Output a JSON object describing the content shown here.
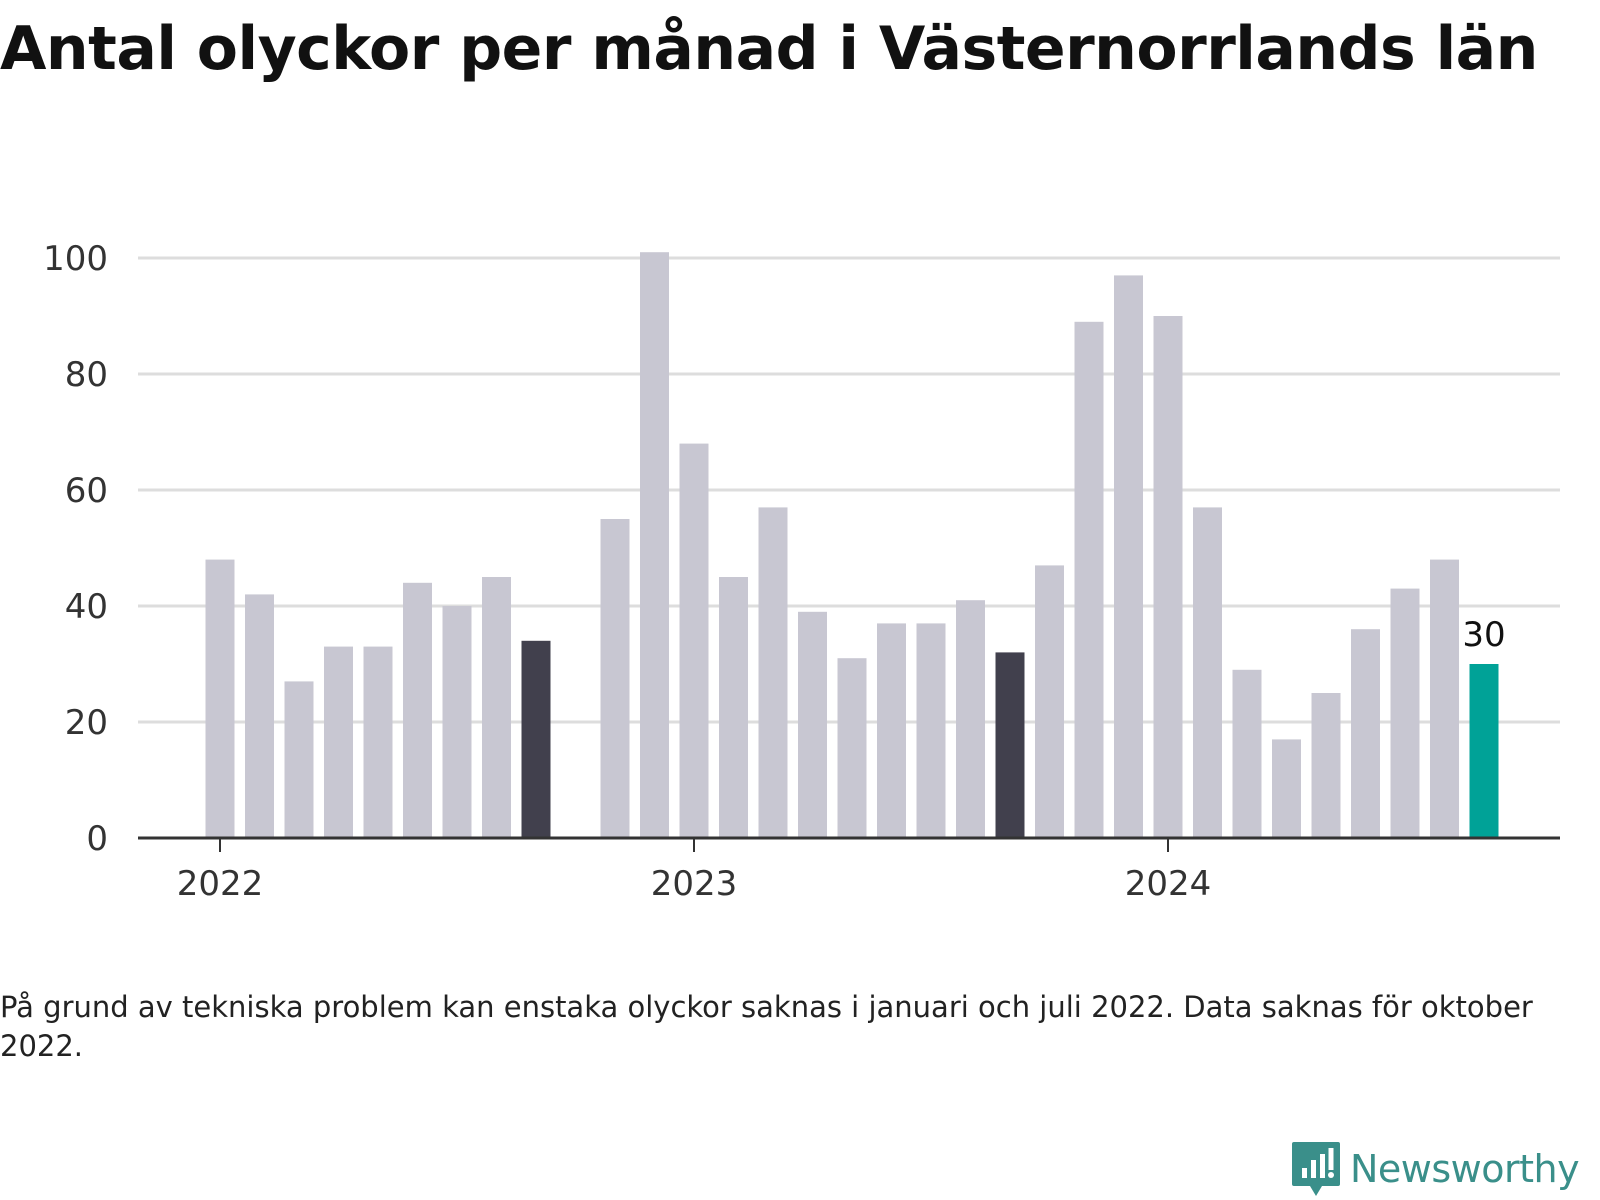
{
  "title": "Antal olyckor per månad i Västernorrlands län",
  "note": "På grund av tekniska problem kan enstaka olyckor saknas i januari och juli 2022. Data saknas för oktober 2022.",
  "brand": {
    "name": "Newsworthy",
    "icon": "newsworthy-logo-icon"
  },
  "colors": {
    "default_bar": "#c8c7d2",
    "highlight_bar": "#41404d",
    "latest_bar": "#00a297",
    "grid": "#dddddd",
    "axis": "#333333",
    "brand": "#3a8f8a"
  },
  "chart_data": {
    "type": "bar",
    "title": "Antal olyckor per månad i Västernorrlands län",
    "xlabel": "",
    "ylabel": "",
    "ylim": [
      0,
      100
    ],
    "yticks": [
      0,
      20,
      40,
      60,
      80,
      100
    ],
    "xtick_labels": [
      {
        "label": "2022",
        "date": "2022-01"
      },
      {
        "label": "2023",
        "date": "2023-01"
      },
      {
        "label": "2024",
        "date": "2024-01"
      }
    ],
    "grid": true,
    "x": [
      "2022-01",
      "2022-02",
      "2022-03",
      "2022-04",
      "2022-05",
      "2022-06",
      "2022-07",
      "2022-08",
      "2022-09",
      "2022-10",
      "2022-11",
      "2022-12",
      "2023-01",
      "2023-02",
      "2023-03",
      "2023-04",
      "2023-05",
      "2023-06",
      "2023-07",
      "2023-08",
      "2023-09",
      "2023-10",
      "2023-11",
      "2023-12",
      "2024-01",
      "2024-02",
      "2024-03",
      "2024-04",
      "2024-05",
      "2024-06",
      "2024-07",
      "2024-08",
      "2024-09"
    ],
    "values": [
      48,
      42,
      27,
      33,
      33,
      44,
      40,
      45,
      34,
      null,
      55,
      101,
      68,
      45,
      57,
      39,
      31,
      37,
      37,
      41,
      32,
      47,
      89,
      97,
      90,
      57,
      29,
      17,
      25,
      36,
      43,
      48,
      30
    ],
    "highlighted": [
      "2022-09",
      "2023-09"
    ],
    "latest": "2024-09",
    "annotations": [
      {
        "x": "2024-09",
        "text": "30"
      }
    ]
  }
}
